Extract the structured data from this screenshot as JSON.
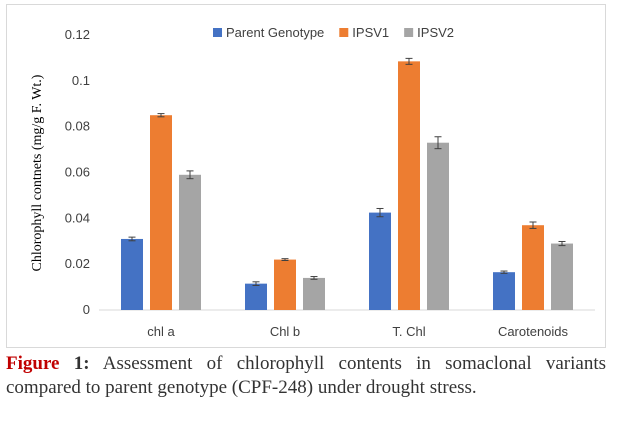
{
  "chart_data": {
    "type": "bar",
    "categories": [
      "chl a",
      "Chl b",
      "T. Chl",
      "Carotenoids"
    ],
    "series": [
      {
        "name": "Parent Genotype",
        "color": "#4472c4",
        "values": [
          0.031,
          0.0115,
          0.0425,
          0.0165
        ],
        "errors": [
          0.0008,
          0.0008,
          0.0018,
          0.0005
        ]
      },
      {
        "name": "IPSV1",
        "color": "#ed7d31",
        "values": [
          0.085,
          0.022,
          0.1085,
          0.037
        ],
        "errors": [
          0.0007,
          0.0004,
          0.0013,
          0.0014
        ]
      },
      {
        "name": "IPSV2",
        "color": "#a5a5a5",
        "values": [
          0.059,
          0.014,
          0.073,
          0.029
        ],
        "errors": [
          0.0017,
          0.0006,
          0.0026,
          0.0009
        ]
      }
    ],
    "ylabel": "Chlorophyll contnets (mg/g F. Wt.)",
    "xlabel": "",
    "ylim": [
      0,
      0.12
    ],
    "yticks": [
      0,
      0.02,
      0.04,
      0.06,
      0.08,
      0.1,
      0.12
    ],
    "ytick_labels": [
      "0",
      "0.02",
      "0.04",
      "0.06",
      "0.08",
      "0.1",
      "0.12"
    ],
    "grid": false,
    "legend_position": "top-right"
  },
  "caption": {
    "prefix": "Figure",
    "number": "1:",
    "text": " Assessment of chlorophyll contents in somaclonal variants compared to parent genotype (CPF-248) under drought stress."
  }
}
